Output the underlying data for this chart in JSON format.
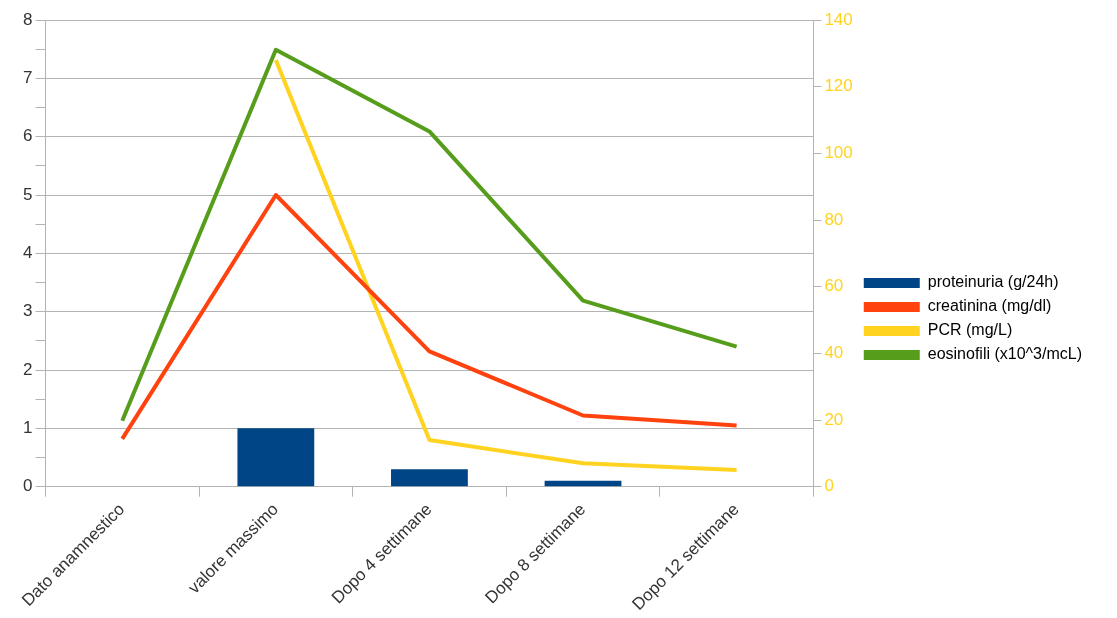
{
  "chart_data": {
    "type": "bar",
    "categories": [
      "Dato anamnestico",
      "valore massimo",
      "Dopo 4 settimane",
      "Dopo 8 settimane",
      "Dopo 12 settimane"
    ],
    "series": [
      {
        "name": "proteinuria (g/24h)",
        "color": "#004586",
        "values": [
          null,
          1.0,
          0.3,
          0.1,
          null
        ]
      },
      {
        "name": "creatinina (mg/dl)",
        "type": "line",
        "color": "#ff420e",
        "values": [
          0.82,
          5.0,
          2.32,
          1.22,
          1.05
        ]
      },
      {
        "name": "PCR (mg/L)",
        "type": "line",
        "color": "#ffd320",
        "axis": "y2",
        "values": [
          null,
          128,
          14,
          7,
          5
        ]
      },
      {
        "name": "eosinofili (x10^3/mcL)",
        "type": "line",
        "color": "#579d1c",
        "values": [
          1.13,
          7.49,
          6.09,
          3.19,
          2.4
        ]
      }
    ],
    "ylim": [
      0,
      8
    ],
    "yticks": [
      0,
      {
        "value": 0.5,
        "label": null
      },
      1,
      {
        "value": 1.5,
        "label": null
      },
      2,
      {
        "value": 2.5,
        "label": null
      },
      3,
      {
        "value": 3.5,
        "label": null
      },
      4,
      {
        "value": 4.5,
        "label": null
      },
      5,
      {
        "value": 5.5,
        "label": null
      },
      6,
      {
        "value": 6.5,
        "label": null
      },
      7,
      {
        "value": 7.5,
        "label": null
      },
      8
    ],
    "y2lim": [
      0,
      140
    ],
    "y2ticks": [
      0,
      20,
      40,
      60,
      80,
      100,
      120,
      140
    ],
    "grid": "y",
    "legend": "right",
    "marker": "none"
  }
}
